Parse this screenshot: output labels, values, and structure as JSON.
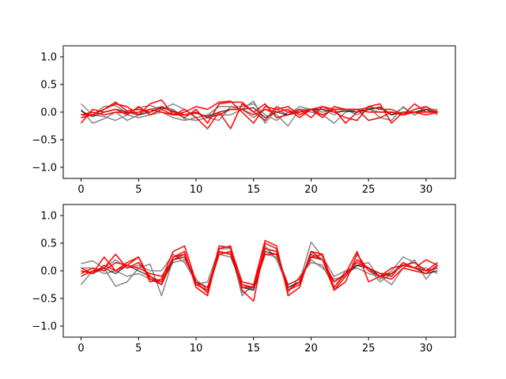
{
  "colors": {
    "red": "#ff0000",
    "gray": "#808080",
    "black": "#000000"
  },
  "chart_data": [
    {
      "type": "line",
      "title": "",
      "xlabel": "",
      "ylabel": "",
      "xlim": [
        -1.55,
        32.55
      ],
      "ylim": [
        -1.2,
        1.2
      ],
      "xticks": [
        0,
        5,
        10,
        15,
        20,
        25,
        30
      ],
      "yticks": [
        1.0,
        0.5,
        0.0,
        -0.5,
        -1.0
      ],
      "ytick_labels": [
        "1.0",
        "0.5",
        "0.0",
        "−0.5",
        "−1.0"
      ],
      "x": [
        0,
        1,
        2,
        3,
        4,
        5,
        6,
        7,
        8,
        9,
        10,
        11,
        12,
        13,
        14,
        15,
        16,
        17,
        18,
        19,
        20,
        21,
        22,
        23,
        24,
        25,
        26,
        27,
        28,
        29,
        30,
        31
      ],
      "series": [
        {
          "color": "gray",
          "values": [
            0.15,
            -0.05,
            0.1,
            0.12,
            -0.02,
            0.08,
            0.12,
            0.05,
            0.15,
            0.05,
            -0.1,
            -0.05,
            0.1,
            0.1,
            0.05,
            0.2,
            -0.2,
            0.05,
            -0.05,
            0.1,
            0.05,
            0.0,
            0.05,
            0.05,
            -0.05,
            0.05,
            0.1,
            -0.05,
            0.08,
            -0.05,
            0.1,
            0.0
          ]
        },
        {
          "color": "gray",
          "values": [
            0.05,
            -0.2,
            -0.12,
            0.0,
            -0.15,
            -0.05,
            0.05,
            0.1,
            0.05,
            -0.12,
            -0.15,
            -0.1,
            -0.15,
            0.1,
            0.1,
            0.15,
            -0.05,
            -0.15,
            0.0,
            0.05,
            0.0,
            -0.05,
            -0.2,
            0.0,
            0.05,
            0.08,
            -0.1,
            -0.15,
            0.1,
            -0.05,
            0.05,
            0.05
          ]
        },
        {
          "color": "gray",
          "values": [
            -0.05,
            -0.05,
            -0.08,
            -0.15,
            -0.05,
            -0.1,
            -0.05,
            0.0,
            -0.1,
            -0.15,
            -0.1,
            -0.05,
            -0.05,
            -0.05,
            0.05,
            -0.1,
            0.05,
            -0.05,
            -0.25,
            0.05,
            0.05,
            0.05,
            -0.05,
            0.05,
            0.0,
            0.05,
            0.0,
            0.0,
            -0.05,
            0.0,
            0.05,
            -0.05
          ]
        },
        {
          "color": "black",
          "values": [
            0.02,
            -0.08,
            0.0,
            0.05,
            0.0,
            -0.05,
            0.0,
            0.08,
            0.02,
            -0.05,
            -0.02,
            -0.08,
            0.0,
            0.05,
            0.05,
            0.08,
            -0.1,
            0.0,
            -0.05,
            0.0,
            0.05,
            0.05,
            0.0,
            0.02,
            0.0,
            0.05,
            0.08,
            -0.05,
            0.0,
            0.0,
            0.05,
            -0.02
          ]
        },
        {
          "color": "red",
          "values": [
            -0.2,
            0.05,
            0.0,
            0.05,
            -0.05,
            0.1,
            -0.05,
            0.05,
            -0.05,
            0.05,
            -0.1,
            -0.3,
            0.0,
            -0.3,
            0.15,
            0.0,
            0.15,
            -0.1,
            -0.05,
            0.05,
            -0.1,
            0.1,
            0.0,
            -0.1,
            -0.15,
            0.1,
            0.15,
            -0.2,
            0.0,
            0.0,
            -0.05,
            0.0
          ]
        },
        {
          "color": "red",
          "values": [
            -0.1,
            -0.05,
            0.05,
            0.15,
            0.1,
            -0.05,
            0.15,
            0.22,
            -0.05,
            0.0,
            0.1,
            0.05,
            0.18,
            0.2,
            0.0,
            -0.2,
            0.1,
            0.05,
            0.1,
            -0.05,
            0.05,
            0.1,
            0.05,
            -0.2,
            0.0,
            0.1,
            0.05,
            0.05,
            -0.05,
            0.15,
            0.0,
            0.0
          ]
        },
        {
          "color": "red",
          "values": [
            -0.05,
            -0.05,
            0.05,
            0.18,
            0.02,
            0.05,
            0.0,
            0.1,
            0.0,
            -0.1,
            0.05,
            -0.2,
            0.15,
            0.18,
            0.18,
            0.0,
            -0.15,
            0.1,
            0.0,
            0.0,
            0.05,
            -0.1,
            0.1,
            0.05,
            0.05,
            -0.15,
            -0.1,
            0.0,
            -0.05,
            0.05,
            0.1,
            -0.02
          ]
        },
        {
          "color": "red",
          "values": [
            -0.05,
            0.0,
            -0.05,
            0.0,
            -0.02,
            0.0,
            0.05,
            0.0,
            -0.05,
            -0.05,
            0.0,
            -0.1,
            -0.05,
            0.05,
            0.05,
            -0.05,
            0.05,
            0.0,
            0.05,
            -0.1,
            0.05,
            -0.05,
            0.05,
            0.05,
            0.05,
            0.0,
            0.0,
            0.0,
            -0.05,
            0.0,
            0.0,
            0.02
          ]
        }
      ]
    },
    {
      "type": "line",
      "title": "",
      "xlabel": "",
      "ylabel": "",
      "xlim": [
        -1.55,
        32.55
      ],
      "ylim": [
        -1.2,
        1.2
      ],
      "xticks": [
        0,
        5,
        10,
        15,
        20,
        25,
        30
      ],
      "yticks": [
        1.0,
        0.5,
        0.0,
        -0.5,
        -1.0
      ],
      "ytick_labels": [
        "1.0",
        "0.5",
        "0.0",
        "−0.5",
        "−1.0"
      ],
      "x": [
        0,
        1,
        2,
        3,
        4,
        5,
        6,
        7,
        8,
        9,
        10,
        11,
        12,
        13,
        14,
        15,
        16,
        17,
        18,
        19,
        20,
        21,
        22,
        23,
        24,
        25,
        26,
        27,
        28,
        29,
        30,
        31
      ],
      "series": [
        {
          "color": "gray",
          "values": [
            0.13,
            0.18,
            0.05,
            0.2,
            0.05,
            0.1,
            0.0,
            0.0,
            0.3,
            0.15,
            -0.2,
            -0.4,
            0.3,
            0.35,
            -0.4,
            -0.3,
            0.45,
            0.2,
            -0.3,
            -0.2,
            0.52,
            0.25,
            -0.1,
            0.0,
            0.1,
            0.15,
            -0.15,
            0.0,
            0.25,
            0.15,
            0.0,
            0.05
          ]
        },
        {
          "color": "gray",
          "values": [
            -0.25,
            0.0,
            0.05,
            -0.28,
            -0.2,
            0.05,
            0.12,
            -0.45,
            0.2,
            0.25,
            -0.25,
            -0.2,
            0.4,
            0.4,
            -0.45,
            -0.25,
            0.4,
            0.35,
            -0.4,
            -0.1,
            0.15,
            0.1,
            -0.3,
            0.0,
            0.05,
            -0.05,
            -0.1,
            -0.25,
            0.05,
            0.2,
            -0.15,
            0.1
          ]
        },
        {
          "color": "gray",
          "values": [
            0.05,
            0.05,
            -0.05,
            0.0,
            -0.1,
            -0.05,
            -0.15,
            -0.2,
            0.15,
            0.2,
            -0.15,
            -0.35,
            0.3,
            0.25,
            -0.25,
            -0.35,
            0.3,
            0.25,
            -0.25,
            -0.15,
            0.2,
            0.05,
            -0.15,
            -0.1,
            0.1,
            0.05,
            -0.2,
            -0.05,
            0.15,
            0.05,
            0.05,
            -0.05
          ]
        },
        {
          "color": "black",
          "values": [
            0.0,
            -0.05,
            0.05,
            -0.05,
            0.1,
            0.0,
            -0.1,
            -0.25,
            0.2,
            0.3,
            -0.2,
            -0.3,
            0.35,
            0.3,
            -0.3,
            -0.35,
            0.35,
            0.3,
            -0.3,
            -0.2,
            0.3,
            0.2,
            -0.2,
            -0.05,
            0.1,
            0.05,
            -0.1,
            -0.05,
            0.1,
            0.05,
            -0.05,
            0.0
          ]
        },
        {
          "color": "red",
          "values": [
            -0.05,
            0.05,
            0.0,
            0.15,
            0.1,
            0.25,
            -0.2,
            -0.15,
            0.35,
            0.45,
            -0.2,
            -0.4,
            0.45,
            0.42,
            -0.2,
            -0.25,
            0.55,
            0.45,
            -0.45,
            -0.3,
            0.35,
            0.3,
            -0.3,
            -0.05,
            0.35,
            -0.2,
            -0.1,
            0.05,
            0.1,
            0.15,
            0.0,
            0.15
          ]
        },
        {
          "color": "red",
          "values": [
            0.05,
            -0.05,
            0.25,
            0.0,
            0.15,
            0.25,
            -0.15,
            -0.25,
            0.25,
            0.35,
            -0.3,
            -0.45,
            0.4,
            0.45,
            -0.35,
            -0.55,
            0.5,
            0.4,
            -0.35,
            -0.25,
            0.35,
            0.2,
            -0.35,
            -0.2,
            0.3,
            0.0,
            -0.1,
            -0.15,
            0.05,
            0.0,
            -0.05,
            0.1
          ]
        },
        {
          "color": "red",
          "values": [
            -0.1,
            0.0,
            0.05,
            0.3,
            0.05,
            0.15,
            -0.1,
            -0.2,
            0.25,
            0.3,
            -0.25,
            -0.35,
            0.3,
            0.35,
            -0.3,
            -0.3,
            0.4,
            0.35,
            -0.35,
            -0.2,
            0.25,
            0.3,
            -0.35,
            -0.1,
            0.2,
            0.05,
            -0.05,
            -0.1,
            0.15,
            0.05,
            0.2,
            0.1
          ]
        },
        {
          "color": "red",
          "values": [
            0.0,
            -0.05,
            0.1,
            0.0,
            0.1,
            0.05,
            -0.05,
            -0.1,
            0.2,
            0.25,
            -0.2,
            -0.3,
            0.35,
            0.3,
            -0.25,
            -0.3,
            0.3,
            0.3,
            -0.25,
            -0.15,
            0.25,
            0.2,
            -0.2,
            -0.05,
            0.15,
            0.05,
            -0.05,
            -0.05,
            0.1,
            0.05,
            0.0,
            0.05
          ]
        }
      ]
    }
  ]
}
